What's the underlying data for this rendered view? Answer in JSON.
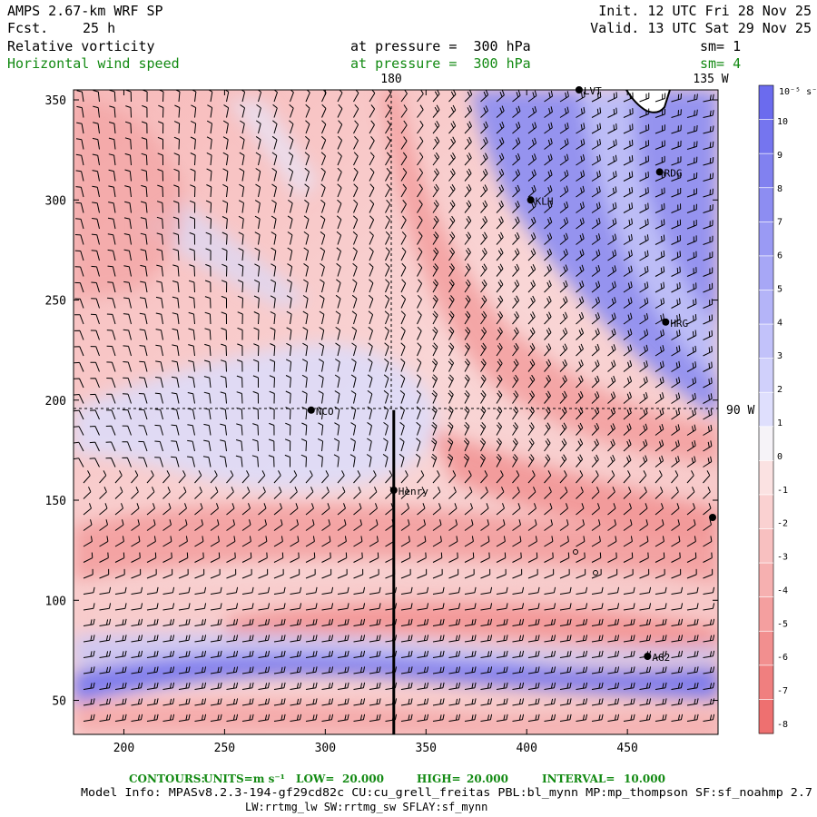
{
  "header": {
    "model": "AMPS 2.67-km WRF SP",
    "fcst_label": "Fcst.",
    "fcst_value": "25 h",
    "init": "Init. 12 UTC Fri 28 Nov 25",
    "valid": "Valid. 13 UTC Sat 29 Nov 25",
    "field1_name": "Relative vorticity",
    "field1_level": "at pressure =  300 hPa",
    "field1_sm": "sm= 1",
    "field2_name": "Horizontal wind speed",
    "field2_level": "at pressure =  300 hPa",
    "field2_sm": "sm= 4"
  },
  "map": {
    "x_ticks": [
      "200",
      "250",
      "300",
      "350",
      "400",
      "450"
    ],
    "y_ticks": [
      "350",
      "300",
      "250",
      "200",
      "150",
      "100",
      "50"
    ],
    "meridian_180": "180",
    "meridian_135w": "135 W",
    "parallel_90w": "90 W",
    "stations": [
      {
        "name": "NCO",
        "x": 293,
        "y": 195
      },
      {
        "name": "Henry",
        "x": 334,
        "y": 155
      },
      {
        "name": "KLH",
        "x": 402,
        "y": 300
      },
      {
        "name": "RDG",
        "x": 466,
        "y": 314
      },
      {
        "name": "HRG",
        "x": 469,
        "y": 239
      },
      {
        "name": "LVT",
        "x": 426,
        "y": 355
      },
      {
        "name": "AG2",
        "x": 460,
        "y": 72
      }
    ],
    "x_range": [
      175,
      495
    ],
    "y_range": [
      33,
      355
    ],
    "section_line": {
      "x": 334,
      "y_from": 33,
      "y_to": 195
    }
  },
  "colorbar": {
    "units": "10⁻⁵ s⁻¹",
    "levels": [
      "10",
      "9",
      "8",
      "7",
      "6",
      "5",
      "4",
      "3",
      "2",
      "1",
      "0",
      "-1",
      "-2",
      "-3",
      "-4",
      "-5",
      "-6",
      "-7",
      "-8"
    ],
    "colors": [
      "#6b6bee",
      "#7575ef",
      "#8181f0",
      "#8d8df2",
      "#9a9af4",
      "#a7a7f6",
      "#b4b4f8",
      "#c2c2fa",
      "#d0d0fb",
      "#dfdffd",
      "#f6f3f8",
      "#fbe2e2",
      "#fad1d1",
      "#f8c0c0",
      "#f6b0b0",
      "#f49f9f",
      "#f28f8f",
      "#f07f7f",
      "#ee7070"
    ]
  },
  "footer": {
    "contours_label": "CONTOURS:",
    "units_label": "UNITS=m s⁻¹",
    "low_label": "LOW=",
    "low_value": "20.000",
    "high_label": "HIGH=",
    "high_value": "20.000",
    "interval_label": "INTERVAL=",
    "interval_value": "10.000",
    "model_info": "Model Info: MPASv8.2.3-194-gf29cd82c CU:cu_grell_freitas PBL:bl_mynn MP:mp_thompson SF:sf_noahmp 2.7",
    "physics": "LW:rrtmg_lw SW:rrtmg_sw SFLAY:sf_mynn"
  }
}
